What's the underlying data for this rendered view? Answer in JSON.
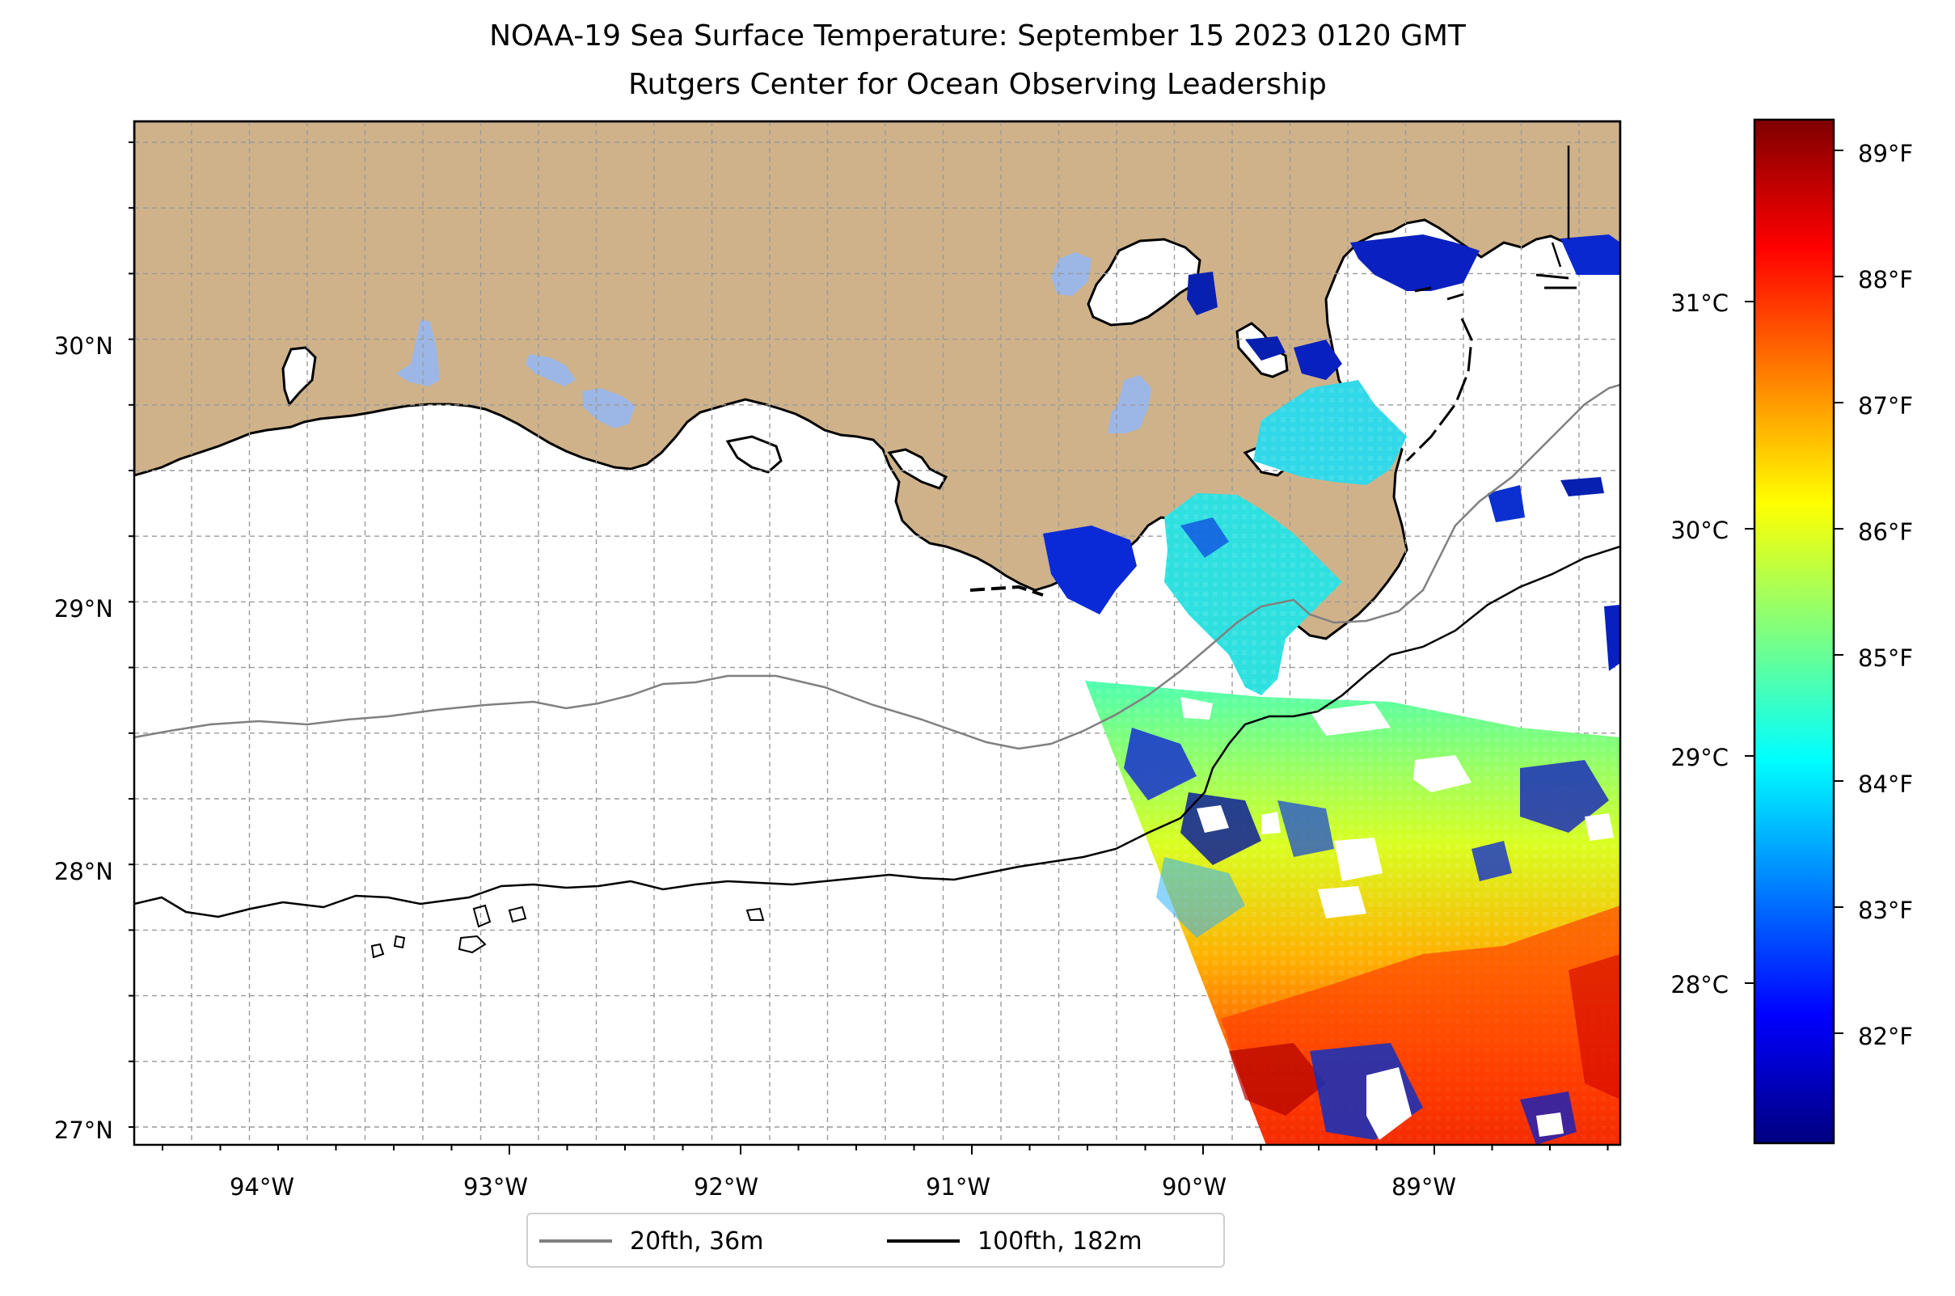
{
  "title_line1": "NOAA-19 Sea Surface Temperature: September 15 2023 0120 GMT",
  "title_line2": "Rutgers Center for Ocean Observing Leadership",
  "lon_ticks": [
    "94°W",
    "93°W",
    "92°W",
    "91°W",
    "90°W",
    "89°W"
  ],
  "lat_ticks": [
    "30°N",
    "29°N",
    "28°N",
    "27°N"
  ],
  "celsius_ticks": [
    "31°C",
    "30°C",
    "29°C",
    "28°C"
  ],
  "fahrenheit_ticks": [
    "89°F",
    "88°F",
    "87°F",
    "86°F",
    "85°F",
    "84°F",
    "83°F",
    "82°F"
  ],
  "colorbar": {
    "colormap": "jet",
    "stops": [
      "#00007f",
      "#0000ff",
      "#007fff",
      "#00ffff",
      "#7fff7f",
      "#ffff00",
      "#ff7f00",
      "#ff0000",
      "#7f0000"
    ]
  },
  "colors": {
    "land": "#cfb28a",
    "lakes": "#9cb7e6",
    "isobath_20": "#808080",
    "isobath_100": "#000000"
  },
  "legend": {
    "items": [
      {
        "label": "20fth, 36m",
        "color": "#808080"
      },
      {
        "label": "100fth, 182m",
        "color": "#000000"
      }
    ]
  }
}
